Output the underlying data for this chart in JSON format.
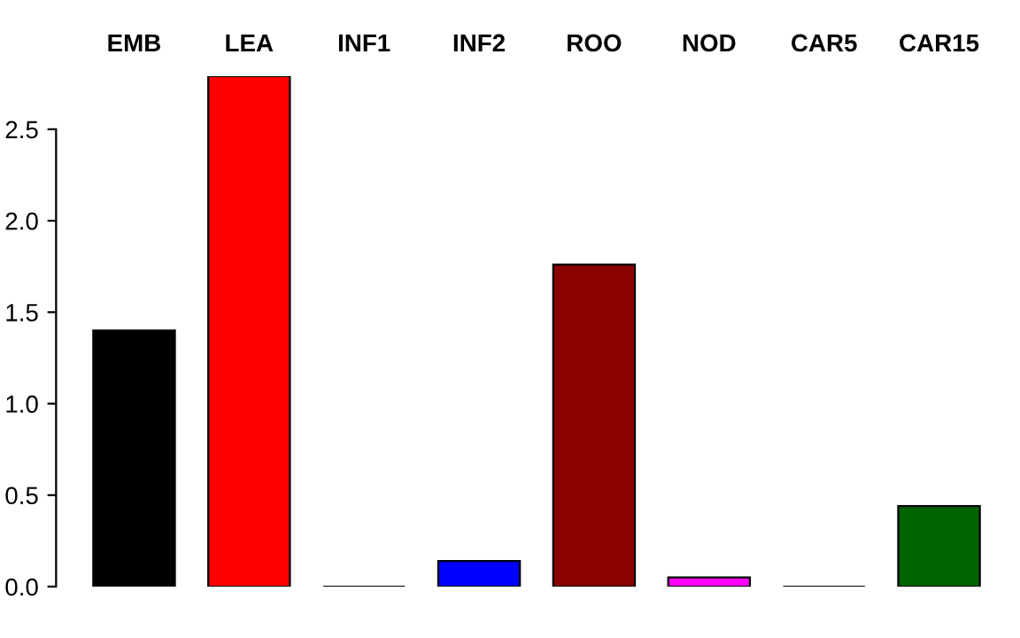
{
  "chart_data": {
    "type": "bar",
    "categories": [
      "EMB",
      "LEA",
      "INF1",
      "INF2",
      "ROO",
      "NOD",
      "CAR5",
      "CAR15"
    ],
    "values": [
      1.4,
      2.79,
      0,
      0.14,
      1.76,
      0.05,
      0,
      0.44
    ],
    "colors": [
      "#000000",
      "#ff0000",
      "#000000",
      "#0000ff",
      "#8b0000",
      "#ff00ff",
      "#000000",
      "#006400"
    ],
    "ylim": [
      0,
      2.79
    ],
    "yticks": [
      {
        "value": 0,
        "label": "0.0"
      },
      {
        "value": 0.5,
        "label": "0.5"
      },
      {
        "value": 1,
        "label": "1.0"
      },
      {
        "value": 1.5,
        "label": "1.5"
      },
      {
        "value": 2,
        "label": "2.0"
      },
      {
        "value": 2.5,
        "label": "2.5"
      }
    ],
    "grid": false,
    "legend": false
  }
}
